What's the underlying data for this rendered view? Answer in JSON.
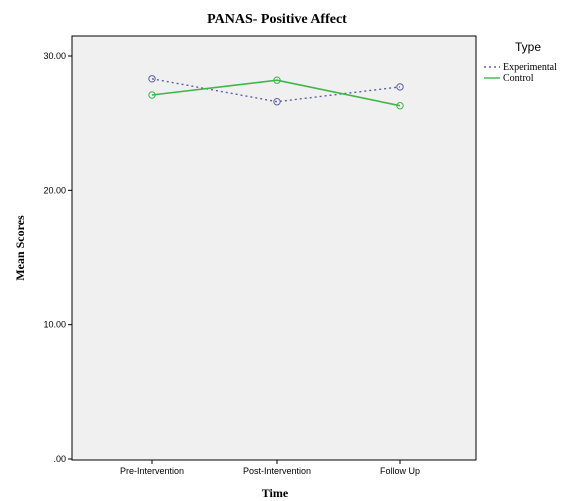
{
  "chart_data": {
    "type": "line",
    "title": "PANAS- Positive Affect",
    "xlabel": "Time",
    "ylabel": "Mean Scores",
    "categories": [
      "Pre-Intervention",
      "Post-Intervention",
      "Follow Up"
    ],
    "ylim": [
      0,
      30
    ],
    "yticks": [
      {
        "value": 0,
        "label": ".00"
      },
      {
        "value": 10,
        "label": "10.00"
      },
      {
        "value": 20,
        "label": "20.00"
      },
      {
        "value": 30,
        "label": "30.00"
      }
    ],
    "grid": false,
    "legend": {
      "title": "Type",
      "position": "right"
    },
    "series": [
      {
        "name": "Experimental",
        "values": [
          28.3,
          26.6,
          27.7
        ],
        "color": "#5b5fa8",
        "dash": "dotted"
      },
      {
        "name": "Control",
        "values": [
          27.1,
          28.2,
          26.3
        ],
        "color": "#3fb54a",
        "dash": "solid"
      }
    ],
    "plot_background": "#f0f0f0"
  }
}
